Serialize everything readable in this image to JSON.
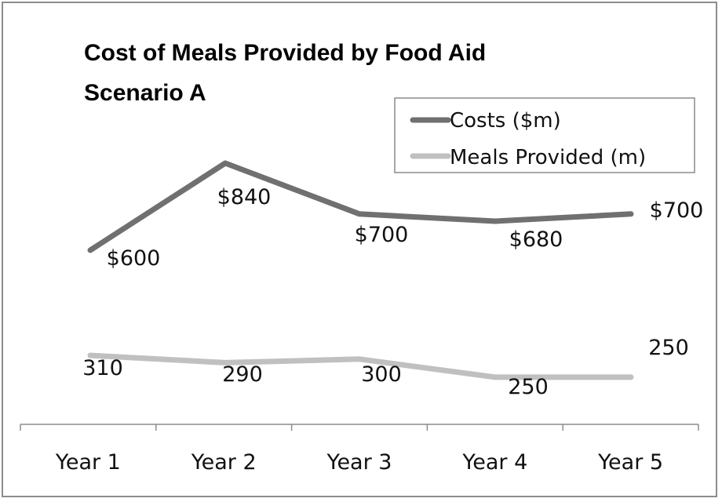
{
  "chart_data": {
    "type": "line",
    "title": "Cost of Meals Provided by Food Aid",
    "subtitle": "Scenario A",
    "categories": [
      "Year 1",
      "Year 2",
      "Year 3",
      "Year 4",
      "Year 5"
    ],
    "series": [
      {
        "name": "Costs ($m)",
        "values": [
          600,
          840,
          700,
          680,
          700
        ],
        "labels": [
          "$600",
          "$840",
          "$700",
          "$680",
          "$700"
        ],
        "color": "#707070"
      },
      {
        "name": "Meals Provided (m)",
        "values": [
          310,
          290,
          300,
          250,
          250
        ],
        "labels": [
          "310",
          "290",
          "300",
          "250",
          "250"
        ],
        "color": "#c0c0c0"
      }
    ],
    "legend": "top-right",
    "grid": false,
    "xlabel": "",
    "ylabel": ""
  }
}
